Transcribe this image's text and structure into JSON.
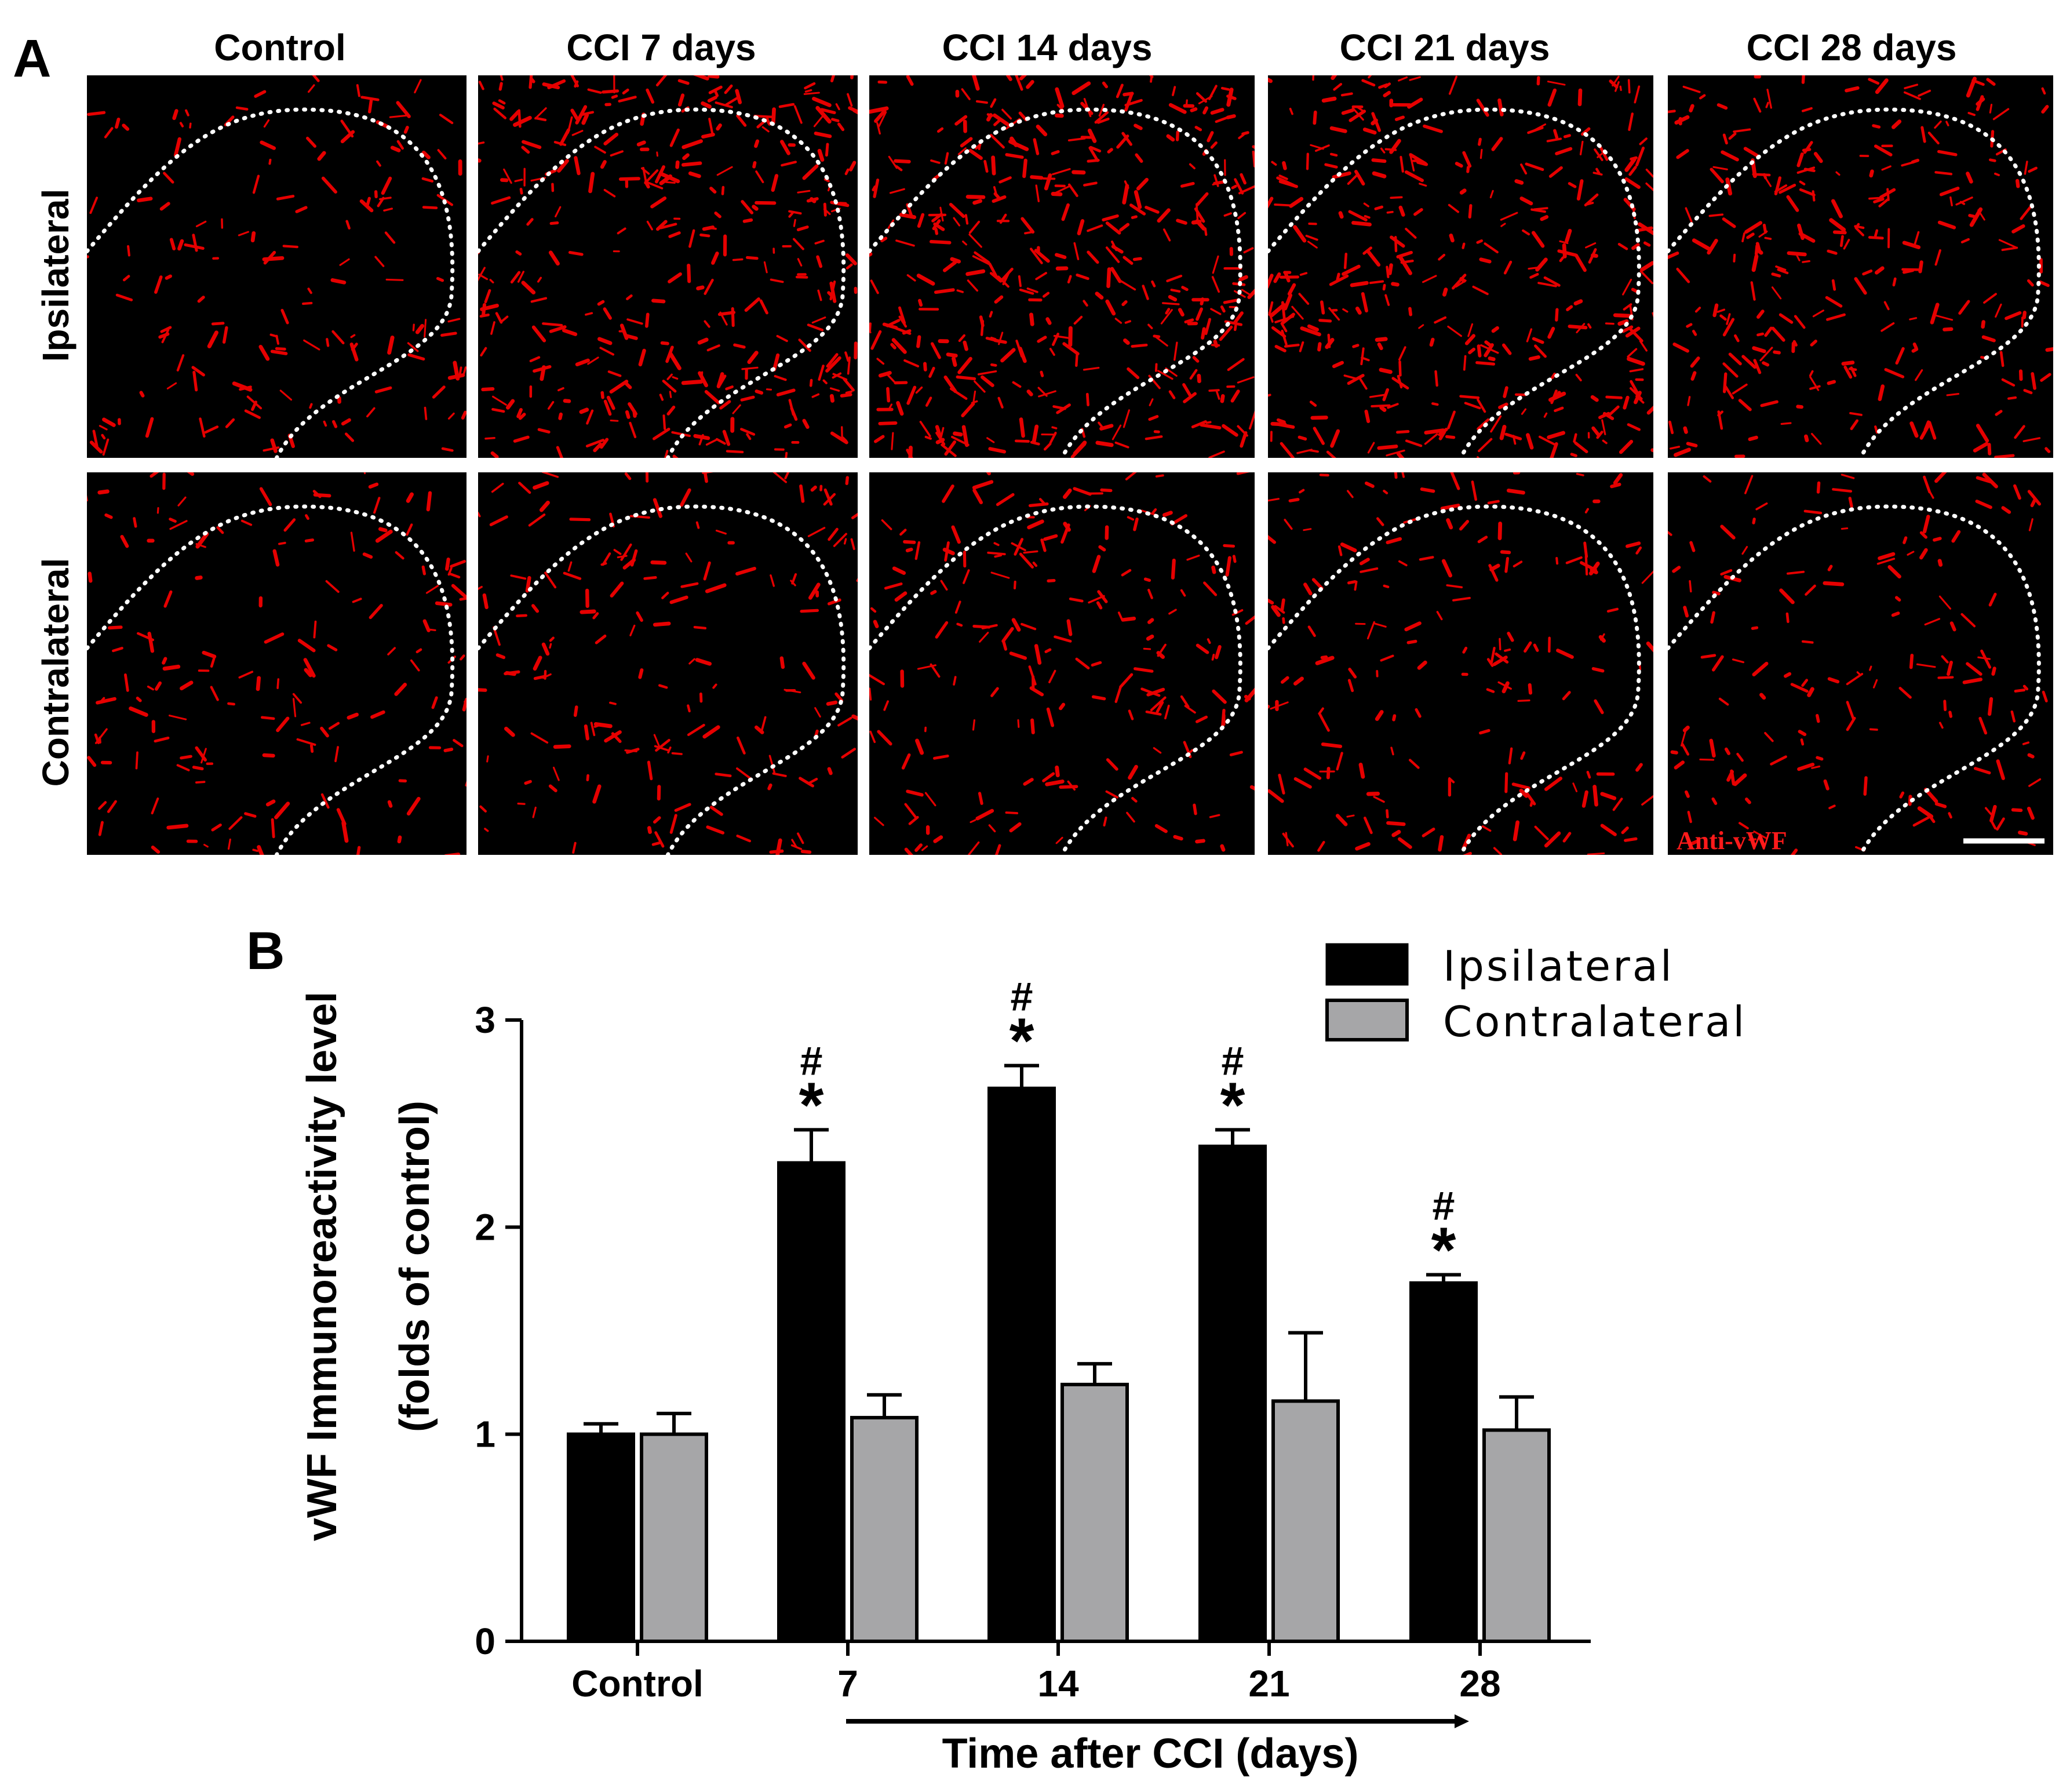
{
  "panel_a": {
    "letter": "A",
    "columns": [
      "Control",
      "CCI 7 days",
      "CCI 14 days",
      "CCI 21 days",
      "CCI 28 days"
    ],
    "rows": [
      "Ipsilateral",
      "Contralateral"
    ],
    "stain_label": "Anti-vWF",
    "image_background": "#000000",
    "vessel_color": "#e60000",
    "outline_style": "white dotted",
    "scale_bar": true
  },
  "panel_b": {
    "letter": "B",
    "colors": {
      "ipsilateral": "#000000",
      "contralateral": "#a6a6a8"
    },
    "chart_data": {
      "type": "bar",
      "categories": [
        "Control",
        "7",
        "14",
        "21",
        "28"
      ],
      "series": [
        {
          "name": "Ipsilateral",
          "values": [
            1.0,
            2.31,
            2.67,
            2.39,
            1.73
          ],
          "errors": [
            0.05,
            0.16,
            0.11,
            0.08,
            0.04
          ]
        },
        {
          "name": "Contralateral",
          "values": [
            1.0,
            1.08,
            1.24,
            1.16,
            1.02
          ],
          "errors": [
            0.1,
            0.11,
            0.1,
            0.33,
            0.16
          ]
        }
      ],
      "annotations": [
        {
          "category": "7",
          "series": "Ipsilateral",
          "marks": [
            "#",
            "*"
          ]
        },
        {
          "category": "14",
          "series": "Ipsilateral",
          "marks": [
            "#",
            "*"
          ]
        },
        {
          "category": "21",
          "series": "Ipsilateral",
          "marks": [
            "#",
            "*"
          ]
        },
        {
          "category": "28",
          "series": "Ipsilateral",
          "marks": [
            "#",
            "*"
          ]
        }
      ],
      "ylabel_line1": "vWF Immunoreactivity level",
      "ylabel_line2": "(folds of control)",
      "xlabel": "Time after CCI (days)",
      "yticks": [
        "0",
        "1",
        "2",
        "3"
      ],
      "ylim": [
        0,
        3
      ],
      "legend_position": "top-right",
      "grid": false
    }
  }
}
